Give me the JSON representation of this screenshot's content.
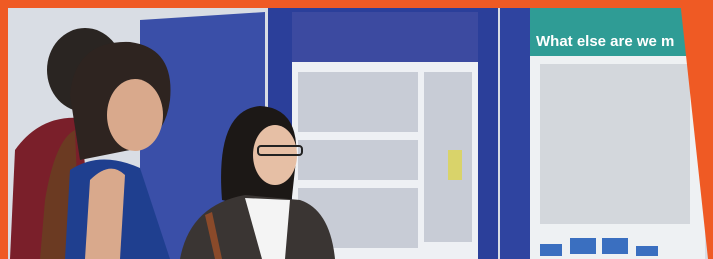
{
  "photo": {
    "poster_heading": "What else are we m"
  }
}
